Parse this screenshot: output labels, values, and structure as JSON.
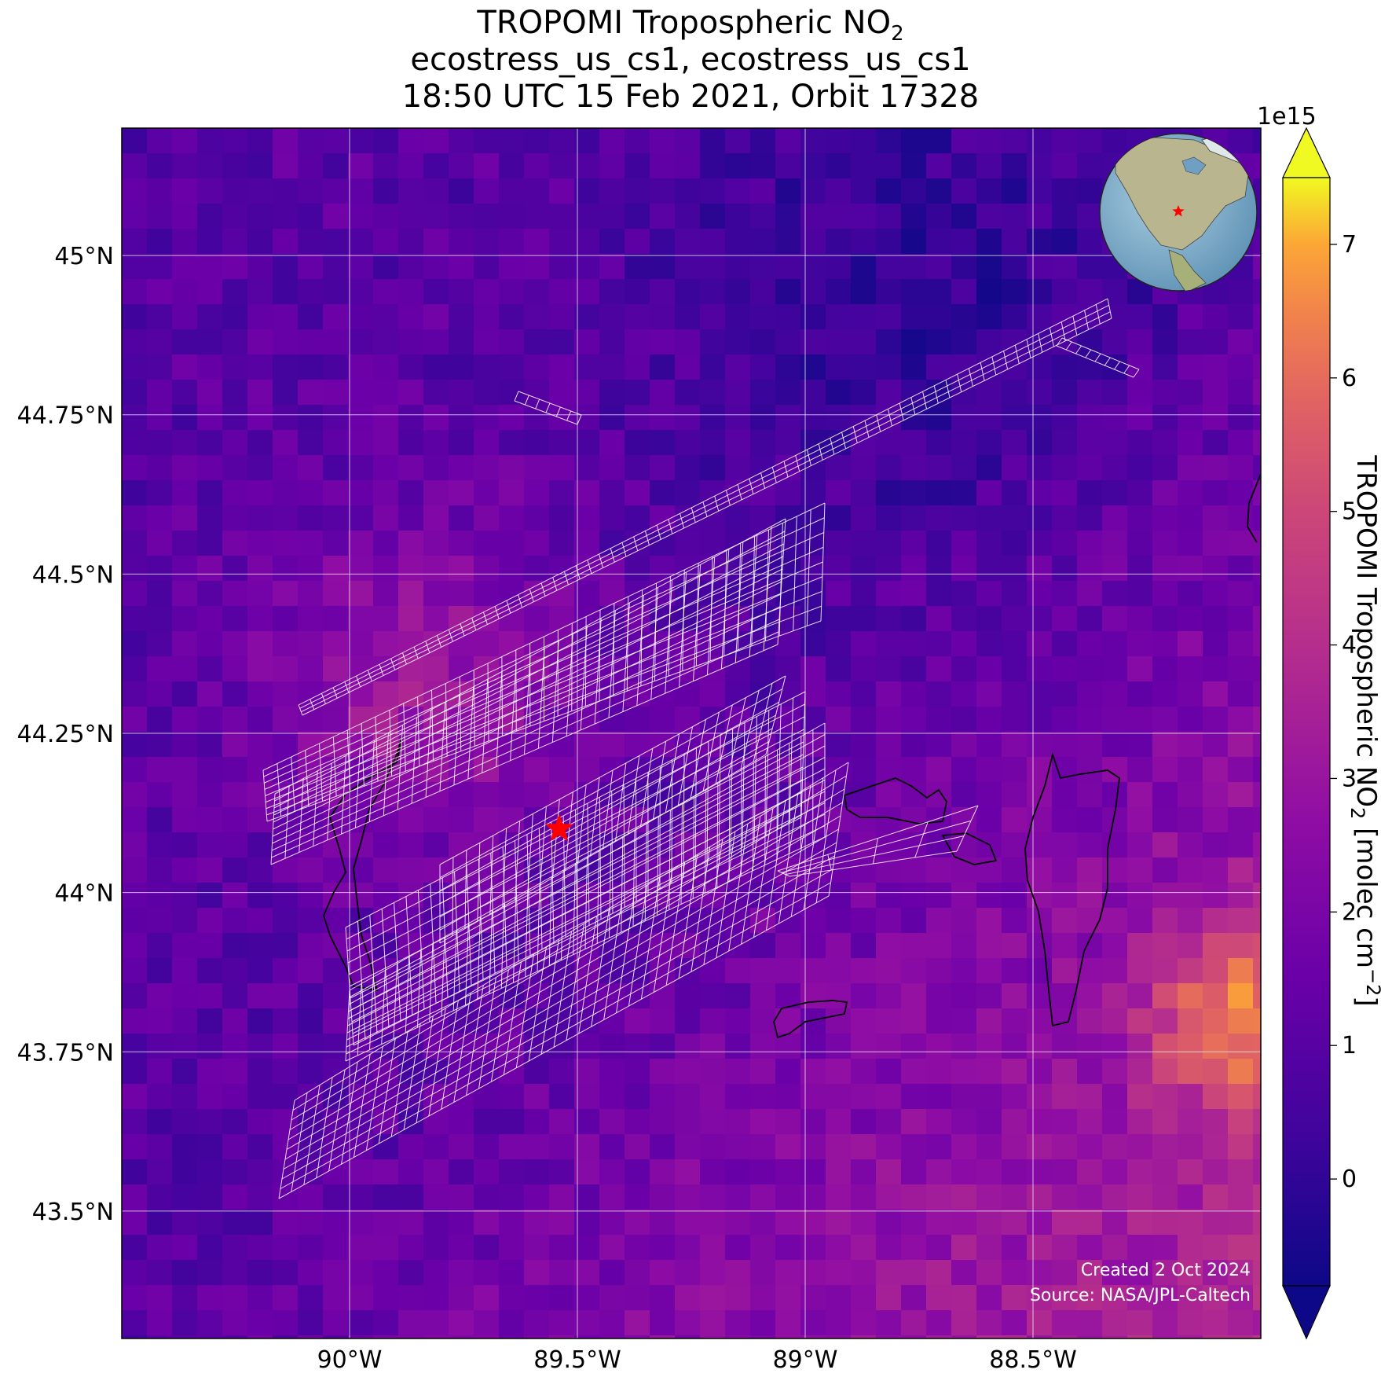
{
  "title": {
    "line1_prefix": "TROPOMI Tropospheric NO",
    "line1_sub": "2",
    "line2": "ecostress_us_cs1, ecostress_us_cs1",
    "line3": "18:50 UTC 15 Feb 2021, Orbit 17328"
  },
  "map": {
    "lon_range": [
      -90.5,
      -88.0
    ],
    "lat_range": [
      43.3,
      45.2
    ],
    "lat_ticks": [
      {
        "value": 45.0,
        "label": "45°N"
      },
      {
        "value": 44.75,
        "label": "44.75°N"
      },
      {
        "value": 44.5,
        "label": "44.5°N"
      },
      {
        "value": 44.25,
        "label": "44.25°N"
      },
      {
        "value": 44.0,
        "label": "44°N"
      },
      {
        "value": 43.75,
        "label": "43.75°N"
      },
      {
        "value": 43.5,
        "label": "43.5°N"
      }
    ],
    "lon_ticks": [
      {
        "value": -90.0,
        "label": "90°W"
      },
      {
        "value": -89.5,
        "label": "89.5°W"
      },
      {
        "value": -89.0,
        "label": "89°W"
      },
      {
        "value": -88.5,
        "label": "88.5°W"
      }
    ],
    "site_marker": {
      "lon": -89.54,
      "lat": 44.1,
      "color": "#ff0000",
      "icon": "star-icon"
    },
    "inset_globe": {
      "icon": "globe-icon",
      "marker_color": "#ff0000"
    },
    "credit": {
      "created": "Created 2 Oct 2024",
      "source": "Source: NASA/JPL-Caltech"
    }
  },
  "colorbar": {
    "label_prefix": "TROPOMI Tropospheric NO",
    "label_sub": "2",
    "label_suffix": " [molec cm",
    "label_sup": "−2",
    "label_end": "]",
    "multiplier": "1e15",
    "colormap": "plasma",
    "range": [
      -0.8,
      7.5
    ],
    "ticks": [
      {
        "value": 0,
        "label": "0"
      },
      {
        "value": 1,
        "label": "1"
      },
      {
        "value": 2,
        "label": "2"
      },
      {
        "value": 3,
        "label": "3"
      },
      {
        "value": 4,
        "label": "4"
      },
      {
        "value": 5,
        "label": "5"
      },
      {
        "value": 6,
        "label": "6"
      },
      {
        "value": 7,
        "label": "7"
      }
    ],
    "extend": "both"
  }
}
